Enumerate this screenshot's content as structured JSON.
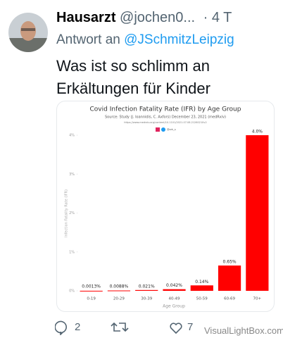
{
  "tweet": {
    "author": "Hausarzt",
    "handle": "@jochen0...",
    "time": "· 4 T",
    "reply_prefix": "Antwort an",
    "reply_to": "@JSchmitzLeipzig",
    "text": "Was ist so schlimm an Erkältungen für Kinder",
    "replies": "2",
    "likes": "7",
    "watermark": "VisualLightBox.com"
  },
  "chart_data": {
    "type": "bar",
    "title": "Covid Infection Fatality Rate (IFR) by Age Group",
    "subtitle": "Source: Study (J. Ioannidis, C. Axfors) December 23, 2021 (medRxiv)",
    "source_url": "https://www.medrxiv.org/content/10.1101/2021.07.08.21260210v2",
    "credit": "@ork_s",
    "xlabel": "Age Group",
    "ylabel": "Infection Fatality Rate (IFR)",
    "categories": [
      "0-19",
      "20-29",
      "30-39",
      "40-49",
      "50-59",
      "60-69",
      "70+"
    ],
    "values": [
      0.0013,
      0.0088,
      0.021,
      0.042,
      0.14,
      0.65,
      4.0
    ],
    "value_labels": [
      "0.0013%",
      "0.0088%",
      "0.021%",
      "0.042%",
      "0.14%",
      "0.65%",
      "4.0%"
    ],
    "color": "#ff0000",
    "ylim": [
      0,
      4
    ],
    "yticks": [
      {
        "value": 0,
        "label": "0%"
      },
      {
        "value": 1,
        "label": "1%"
      },
      {
        "value": 2,
        "label": "2%"
      },
      {
        "value": 3,
        "label": "3%"
      },
      {
        "value": 4,
        "label": "4%"
      }
    ]
  }
}
